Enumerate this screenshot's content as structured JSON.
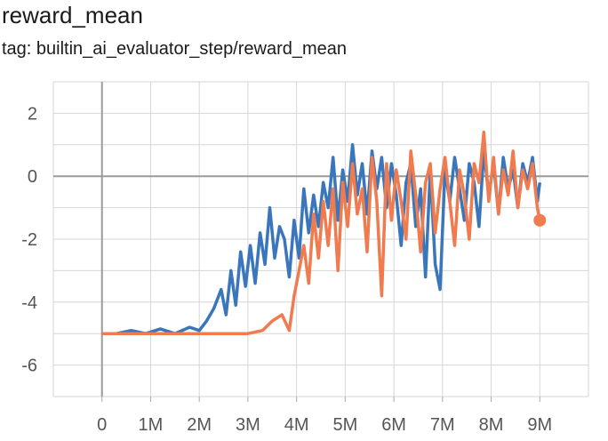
{
  "chart_data": {
    "type": "line",
    "title": "reward_mean",
    "subtitle": "tag: builtin_ai_evaluator_step/reward_mean",
    "xlabel": "",
    "ylabel": "",
    "xlim": [
      -1000000,
      10000000
    ],
    "ylim": [
      -7,
      3
    ],
    "x_ticks": [
      {
        "value": 0,
        "label": "0"
      },
      {
        "value": 1000000,
        "label": "1M"
      },
      {
        "value": 2000000,
        "label": "2M"
      },
      {
        "value": 3000000,
        "label": "3M"
      },
      {
        "value": 4000000,
        "label": "4M"
      },
      {
        "value": 5000000,
        "label": "5M"
      },
      {
        "value": 6000000,
        "label": "6M"
      },
      {
        "value": 7000000,
        "label": "7M"
      },
      {
        "value": 8000000,
        "label": "8M"
      },
      {
        "value": 9000000,
        "label": "9M"
      }
    ],
    "y_ticks": [
      {
        "value": 2,
        "label": "2"
      },
      {
        "value": 0,
        "label": "0"
      },
      {
        "value": -2,
        "label": "-2"
      },
      {
        "value": -4,
        "label": "-4"
      },
      {
        "value": -6,
        "label": "-6"
      }
    ],
    "grid": true,
    "series": [
      {
        "color": "#3a76bb",
        "x": [
          0,
          300000,
          600000,
          900000,
          1200000,
          1500000,
          1800000,
          2000000,
          2150000,
          2300000,
          2450000,
          2550000,
          2650000,
          2750000,
          2850000,
          2950000,
          3050000,
          3150000,
          3250000,
          3350000,
          3450000,
          3550000,
          3650000,
          3750000,
          3850000,
          3950000,
          4050000,
          4150000,
          4250000,
          4350000,
          4450000,
          4550000,
          4650000,
          4750000,
          4850000,
          4950000,
          5050000,
          5150000,
          5250000,
          5350000,
          5450000,
          5550000,
          5650000,
          5750000,
          5850000,
          5950000,
          6050000,
          6150000,
          6250000,
          6350000,
          6450000,
          6550000,
          6650000,
          6750000,
          6850000,
          6950000,
          7050000,
          7150000,
          7250000,
          7350000,
          7450000,
          7550000,
          7650000,
          7750000,
          7850000,
          7950000,
          8050000,
          8150000,
          8250000,
          8350000,
          8450000,
          8550000,
          8650000,
          8750000,
          8850000,
          8950000,
          9000000
        ],
        "values": [
          -5,
          -5,
          -4.9,
          -5,
          -4.85,
          -5,
          -4.8,
          -4.9,
          -4.6,
          -4.2,
          -3.6,
          -4.4,
          -3.0,
          -4.1,
          -2.4,
          -3.5,
          -2.2,
          -3.4,
          -1.8,
          -2.8,
          -1.0,
          -2.6,
          -1.6,
          -2.0,
          -3.2,
          -1.4,
          -2.6,
          -0.4,
          -1.8,
          -0.6,
          -1.6,
          -0.2,
          -1.0,
          0.6,
          -1.4,
          0.2,
          -0.8,
          1.0,
          -0.6,
          0.4,
          -1.2,
          0.8,
          -0.4,
          0.6,
          -1.0,
          0.4,
          -0.6,
          -2.2,
          -0.2,
          0.4,
          -1.6,
          -0.4,
          -3.2,
          0.2,
          -2.8,
          -3.6,
          0.2,
          -0.8,
          0.6,
          -0.4,
          -1.4,
          0.4,
          -0.2,
          -1.6,
          0.8,
          -0.6,
          0.4,
          -1.2,
          0.6,
          -0.4,
          0.2,
          -1.0,
          0.4,
          -0.2,
          0.6,
          -0.8,
          -0.2
        ]
      },
      {
        "color": "#ef7b4f",
        "x": [
          0,
          500000,
          1000000,
          1500000,
          2000000,
          2500000,
          3000000,
          3300000,
          3500000,
          3700000,
          3850000,
          3950000,
          4050000,
          4150000,
          4250000,
          4350000,
          4450000,
          4550000,
          4650000,
          4750000,
          4850000,
          4950000,
          5050000,
          5150000,
          5250000,
          5350000,
          5450000,
          5550000,
          5650000,
          5750000,
          5850000,
          5950000,
          6050000,
          6150000,
          6250000,
          6350000,
          6450000,
          6550000,
          6650000,
          6750000,
          6850000,
          6950000,
          7050000,
          7150000,
          7250000,
          7350000,
          7450000,
          7550000,
          7650000,
          7750000,
          7850000,
          7950000,
          8050000,
          8150000,
          8250000,
          8350000,
          8450000,
          8550000,
          8650000,
          8750000,
          8850000,
          8950000,
          9000000
        ],
        "values": [
          -5,
          -5,
          -5,
          -5,
          -5,
          -5,
          -5,
          -4.9,
          -4.6,
          -4.4,
          -4.9,
          -3.8,
          -3.0,
          -2.2,
          -3.4,
          -1.2,
          -2.6,
          -0.8,
          -2.2,
          -0.4,
          -3.0,
          -0.2,
          -1.6,
          0.4,
          -1.2,
          -0.4,
          -2.4,
          0.6,
          -0.8,
          -3.8,
          0.4,
          -1.4,
          0.2,
          -0.8,
          -2.0,
          0.8,
          -0.6,
          -2.4,
          -0.2,
          0.4,
          -1.8,
          -0.4,
          0.6,
          -0.8,
          -2.2,
          0.2,
          -0.6,
          -2.0,
          0.4,
          -0.2,
          1.4,
          -0.8,
          0.6,
          -1.2,
          0.2,
          -0.6,
          0.8,
          -1.0,
          0.2,
          -0.4,
          0.4,
          -1.0,
          -1.4
        ]
      }
    ],
    "end_marker_series": 1
  }
}
